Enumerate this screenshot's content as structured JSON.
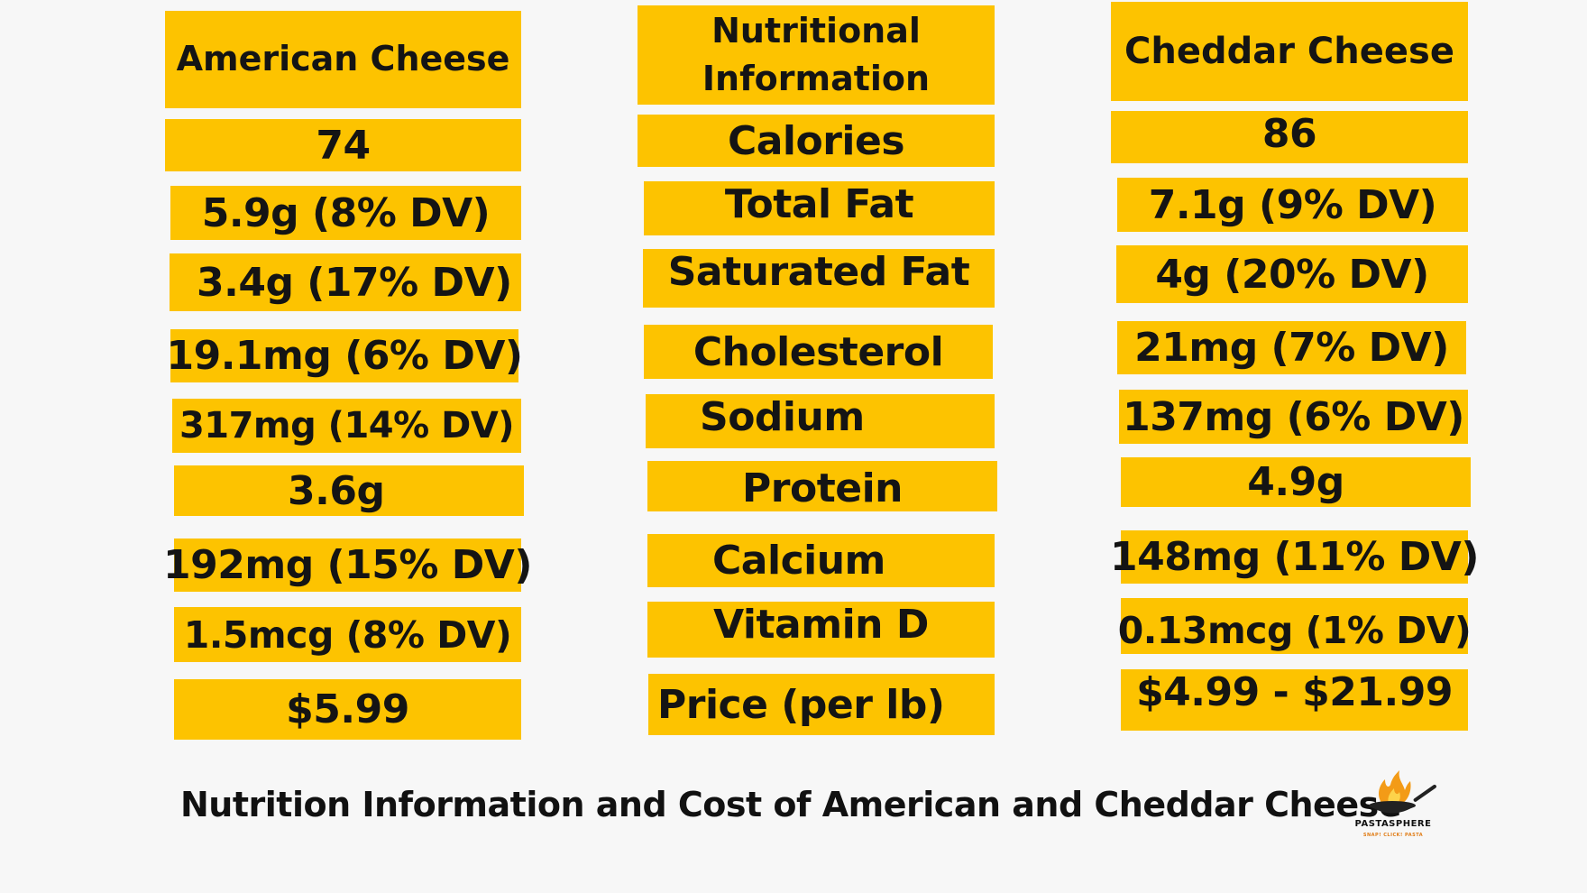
{
  "american": {
    "header": "American Cheese",
    "values": [
      "74",
      "5.9g (8% DV)",
      "3.4g (17% DV)",
      "19.1mg (6% DV)",
      "317mg (14% DV)",
      "3.6g",
      "192mg (15% DV)",
      "1.5mcg (8% DV)",
      "$5.99"
    ]
  },
  "nutrition": {
    "header": "Nutritional Information",
    "labels": [
      "Calories",
      "Total Fat",
      "Saturated Fat",
      "Cholesterol",
      "Sodium",
      "Protein",
      "Calcium",
      "Vitamin D",
      "Price (per lb)"
    ]
  },
  "cheddar": {
    "header": "Cheddar Cheese",
    "values": [
      "86",
      "7.1g (9% DV)",
      "4g (20% DV)",
      "21mg (7% DV)",
      "137mg (6% DV)",
      "4.9g",
      "148mg (11% DV)",
      "0.13mcg (1% DV)",
      "$4.99 - $21.99"
    ]
  },
  "caption": "Nutrition Information and Cost of American and Cheddar Cheese",
  "logo": {
    "name": "PASTASPHERE",
    "tagline": "SNAP! CLICK! PASTA",
    "icon": "pan-flame-icon"
  },
  "colors": {
    "cell": "#fdc300",
    "background": "#f7f7f7",
    "text": "#141414"
  }
}
